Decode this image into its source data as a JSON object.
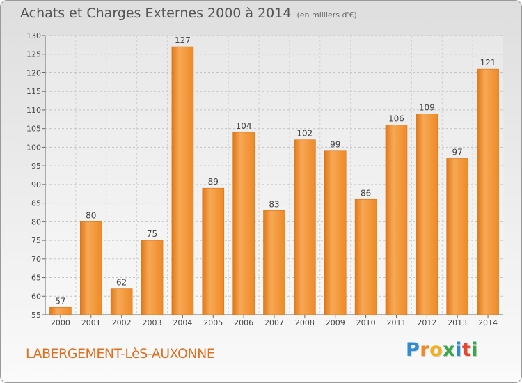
{
  "header": {
    "title": "Achats et Charges Externes 2000 à 2014",
    "subtitle": "(en milliers d'€)"
  },
  "footer": {
    "commune": "LABERGEMENT-LèS-AUXONNE",
    "logo_letters": [
      "P",
      "r",
      "o",
      "x",
      "i",
      "t",
      "i"
    ],
    "logo_colors": [
      "#2e8bd4",
      "#f08a24",
      "#f2b01e",
      "#3aa84a",
      "#2e8bd4",
      "#e8452c",
      "#3aa84a"
    ]
  },
  "chart_data": {
    "type": "bar",
    "title": "Achats et Charges Externes 2000 à 2014",
    "subtitle": "(en milliers d'€)",
    "categories": [
      "2000",
      "2001",
      "2002",
      "2003",
      "2004",
      "2005",
      "2006",
      "2007",
      "2008",
      "2009",
      "2010",
      "2011",
      "2012",
      "2013",
      "2014"
    ],
    "values": [
      57,
      80,
      62,
      75,
      127,
      89,
      104,
      83,
      102,
      99,
      86,
      106,
      109,
      97,
      121
    ],
    "ylim": [
      55,
      130
    ],
    "yticks": [
      55,
      60,
      65,
      70,
      75,
      80,
      85,
      90,
      95,
      100,
      105,
      110,
      115,
      120,
      125,
      130
    ],
    "grid": true,
    "bar_color": "#f0922e",
    "bar_color_light": "#f7ad5e",
    "bar_color_dark": "#e07818"
  }
}
